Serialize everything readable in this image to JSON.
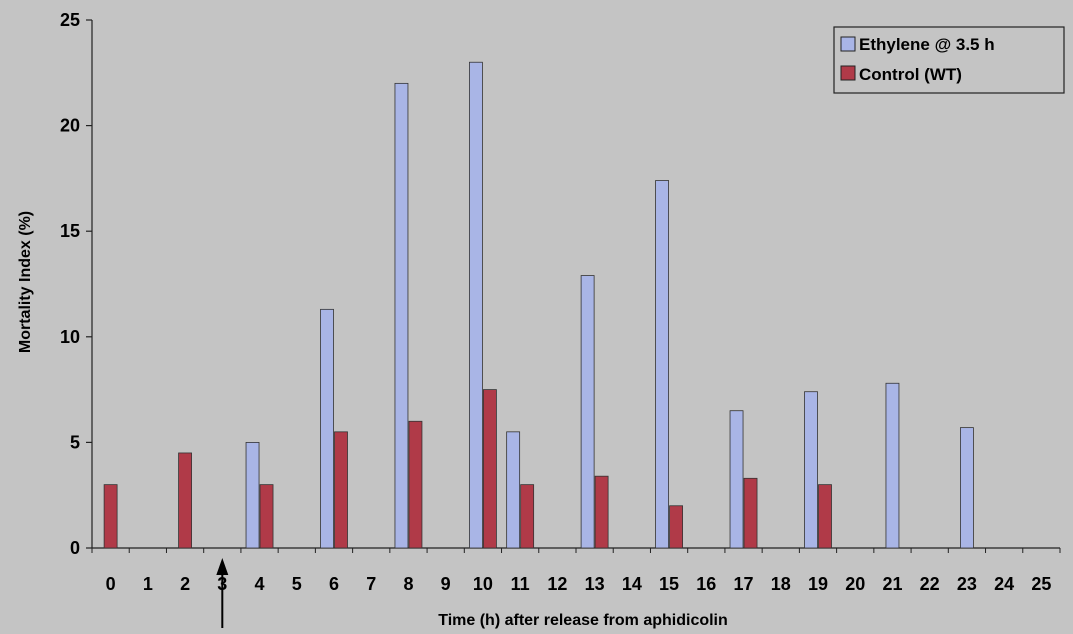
{
  "chart_data": {
    "type": "bar",
    "xlabel": "Time (h) after release from aphidicolin",
    "ylabel": "Mortality Index (%)",
    "ylim": [
      0,
      25
    ],
    "yticks": [
      0,
      5,
      10,
      15,
      20,
      25
    ],
    "categories": [
      "0",
      "1",
      "2",
      "3",
      "4",
      "5",
      "6",
      "7",
      "8",
      "9",
      "10",
      "11",
      "12",
      "13",
      "14",
      "15",
      "16",
      "17",
      "18",
      "19",
      "20",
      "21",
      "22",
      "23",
      "24",
      "25"
    ],
    "series": [
      {
        "name": "Ethylene @ 3.5 h",
        "color": "#a9b5e6",
        "values": [
          null,
          null,
          null,
          null,
          5.0,
          null,
          11.3,
          null,
          22.0,
          null,
          23.0,
          5.5,
          null,
          12.9,
          null,
          17.4,
          null,
          6.5,
          null,
          7.4,
          null,
          7.8,
          null,
          5.7,
          null,
          null
        ]
      },
      {
        "name": "Control (WT)",
        "color": "#b03a48",
        "values": [
          3.0,
          null,
          4.5,
          null,
          3.0,
          null,
          5.5,
          null,
          6.0,
          null,
          7.5,
          3.0,
          null,
          3.4,
          null,
          2.0,
          null,
          3.3,
          null,
          3.0,
          null,
          null,
          null,
          null,
          null,
          null
        ]
      }
    ],
    "legend_position": "top-right",
    "grid": false,
    "annotation": {
      "type": "arrow",
      "at_x": 3.5,
      "direction": "up"
    }
  }
}
